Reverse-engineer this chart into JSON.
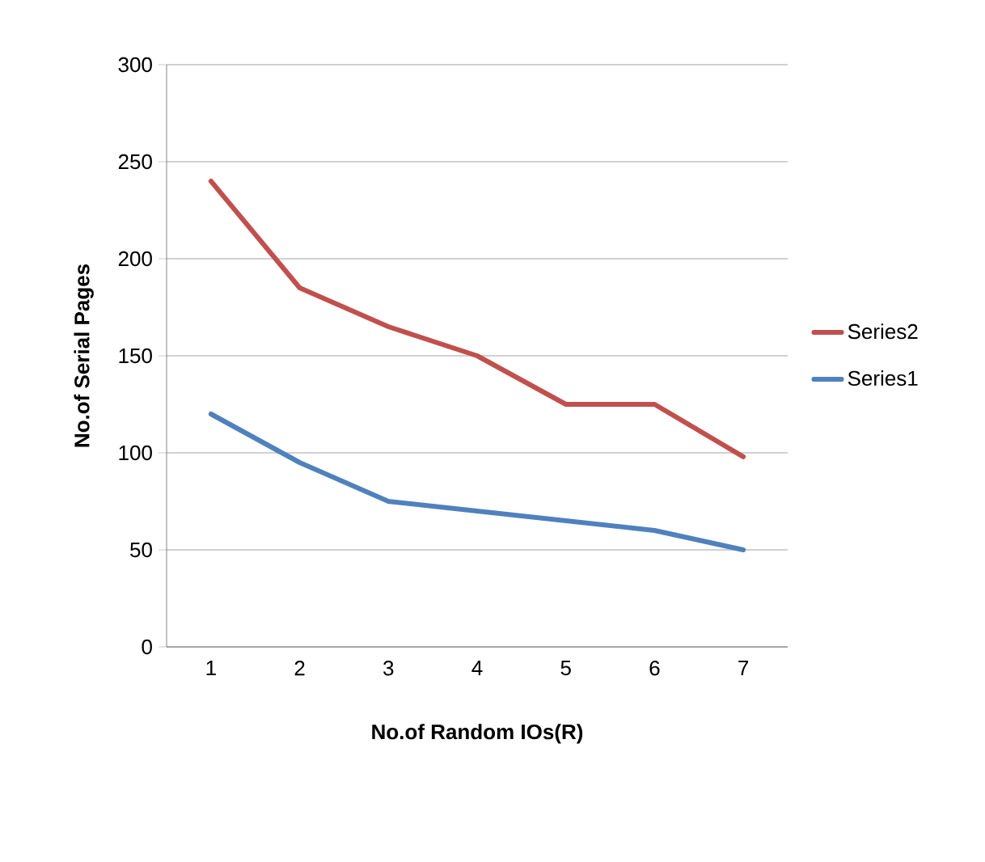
{
  "chart_data": {
    "type": "line",
    "xlabel": "No.of Random IOs(R)",
    "ylabel": "No.of Serial Pages",
    "categories": [
      "1",
      "2",
      "3",
      "4",
      "5",
      "6",
      "7"
    ],
    "series": [
      {
        "name": "Series2",
        "color": "#c0504d",
        "values": [
          240,
          185,
          165,
          150,
          125,
          125,
          98
        ]
      },
      {
        "name": "Series1",
        "color": "#4f81bd",
        "values": [
          120,
          95,
          75,
          70,
          65,
          60,
          50
        ]
      }
    ],
    "ylim": [
      0,
      300
    ],
    "yticks": [
      0,
      50,
      100,
      150,
      200,
      250,
      300
    ],
    "grid": "y",
    "legend": "right",
    "marker": "none",
    "line_style": "solid"
  }
}
